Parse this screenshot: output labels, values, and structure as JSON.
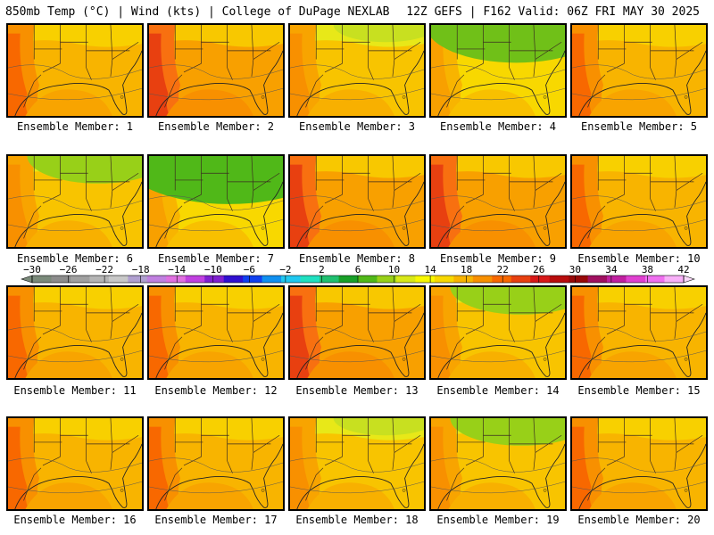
{
  "header": {
    "left": "850mb Temp (°C) | Wind (kts) | College of DuPage NEXLAB",
    "right": "12Z GEFS | F162 Valid: 06Z FRI MAY 30 2025"
  },
  "members": [
    {
      "label": "Ensemble Member: 1",
      "palette": "warm",
      "cool": 0
    },
    {
      "label": "Ensemble Member: 2",
      "palette": "hot",
      "cool": 0
    },
    {
      "label": "Ensemble Member: 3",
      "palette": "mid",
      "cool": 1
    },
    {
      "label": "Ensemble Member: 4",
      "palette": "cool",
      "cool": 3
    },
    {
      "label": "Ensemble Member: 5",
      "palette": "warm",
      "cool": 0
    },
    {
      "label": "Ensemble Member: 6",
      "palette": "mid",
      "cool": 2
    },
    {
      "label": "Ensemble Member: 7",
      "palette": "cool",
      "cool": 4
    },
    {
      "label": "Ensemble Member: 8",
      "palette": "hot",
      "cool": 0
    },
    {
      "label": "Ensemble Member: 9",
      "palette": "hot",
      "cool": 0
    },
    {
      "label": "Ensemble Member: 10",
      "palette": "warm",
      "cool": 0
    },
    {
      "label": "Ensemble Member: 11",
      "palette": "warm",
      "cool": 0
    },
    {
      "label": "Ensemble Member: 12",
      "palette": "warm",
      "cool": 0
    },
    {
      "label": "Ensemble Member: 13",
      "palette": "hot",
      "cool": 0
    },
    {
      "label": "Ensemble Member: 14",
      "palette": "mid",
      "cool": 2
    },
    {
      "label": "Ensemble Member: 15",
      "palette": "warm",
      "cool": 0
    },
    {
      "label": "Ensemble Member: 16",
      "palette": "warm",
      "cool": 0
    },
    {
      "label": "Ensemble Member: 17",
      "palette": "warm",
      "cool": 0
    },
    {
      "label": "Ensemble Member: 18",
      "palette": "mid",
      "cool": 1
    },
    {
      "label": "Ensemble Member: 19",
      "palette": "mid",
      "cool": 2
    },
    {
      "label": "Ensemble Member: 20",
      "palette": "warm",
      "cool": 0
    }
  ],
  "colorbar": {
    "ticks": [
      "−30",
      "−26",
      "−22",
      "−18",
      "−14",
      "−10",
      "−6",
      "−2",
      "2",
      "6",
      "10",
      "14",
      "18",
      "22",
      "26",
      "30",
      "34",
      "38",
      "42"
    ],
    "colors": [
      "#7a8a7a",
      "#8c8c8c",
      "#a0a0a0",
      "#b4b4b4",
      "#c8c8c8",
      "#b0a0d0",
      "#c080e0",
      "#e070e0",
      "#c040e0",
      "#8020d0",
      "#3010d0",
      "#1040f0",
      "#1090f0",
      "#20c8f0",
      "#20e0c0",
      "#20c070",
      "#18a028",
      "#50b818",
      "#98d018",
      "#d8e818",
      "#f8f800",
      "#f8d800",
      "#f8b400",
      "#f89000",
      "#f86800",
      "#e84010",
      "#d81818",
      "#b80c0c",
      "#980808",
      "#a01060",
      "#c020a0",
      "#e040d0",
      "#f070f0",
      "#f8b0f8"
    ]
  }
}
